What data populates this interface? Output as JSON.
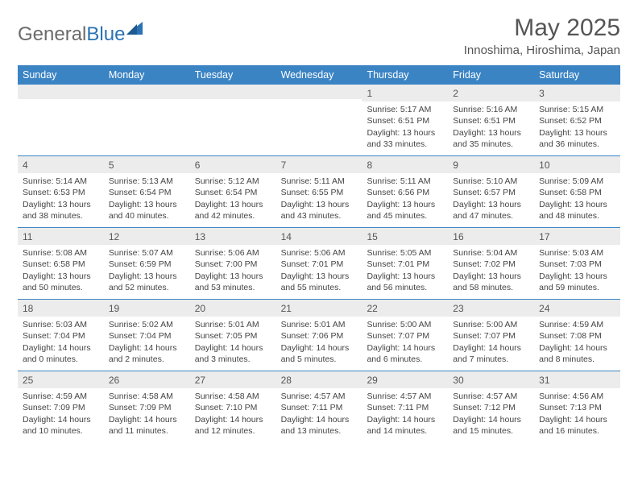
{
  "logo": {
    "text_gray": "General",
    "text_blue": "Blue"
  },
  "title": "May 2025",
  "location": "Innoshima, Hiroshima, Japan",
  "colors": {
    "header_bg": "#3b84c4",
    "header_text": "#ffffff",
    "daynum_bg": "#ececec",
    "week_border": "#3b84c4",
    "body_text": "#444444",
    "logo_gray": "#6b6b6b",
    "logo_blue": "#2a72b5"
  },
  "day_names": [
    "Sunday",
    "Monday",
    "Tuesday",
    "Wednesday",
    "Thursday",
    "Friday",
    "Saturday"
  ],
  "weeks": [
    [
      {
        "n": "",
        "sr": "",
        "ss": "",
        "dl": ""
      },
      {
        "n": "",
        "sr": "",
        "ss": "",
        "dl": ""
      },
      {
        "n": "",
        "sr": "",
        "ss": "",
        "dl": ""
      },
      {
        "n": "",
        "sr": "",
        "ss": "",
        "dl": ""
      },
      {
        "n": "1",
        "sr": "Sunrise: 5:17 AM",
        "ss": "Sunset: 6:51 PM",
        "dl": "Daylight: 13 hours and 33 minutes."
      },
      {
        "n": "2",
        "sr": "Sunrise: 5:16 AM",
        "ss": "Sunset: 6:51 PM",
        "dl": "Daylight: 13 hours and 35 minutes."
      },
      {
        "n": "3",
        "sr": "Sunrise: 5:15 AM",
        "ss": "Sunset: 6:52 PM",
        "dl": "Daylight: 13 hours and 36 minutes."
      }
    ],
    [
      {
        "n": "4",
        "sr": "Sunrise: 5:14 AM",
        "ss": "Sunset: 6:53 PM",
        "dl": "Daylight: 13 hours and 38 minutes."
      },
      {
        "n": "5",
        "sr": "Sunrise: 5:13 AM",
        "ss": "Sunset: 6:54 PM",
        "dl": "Daylight: 13 hours and 40 minutes."
      },
      {
        "n": "6",
        "sr": "Sunrise: 5:12 AM",
        "ss": "Sunset: 6:54 PM",
        "dl": "Daylight: 13 hours and 42 minutes."
      },
      {
        "n": "7",
        "sr": "Sunrise: 5:11 AM",
        "ss": "Sunset: 6:55 PM",
        "dl": "Daylight: 13 hours and 43 minutes."
      },
      {
        "n": "8",
        "sr": "Sunrise: 5:11 AM",
        "ss": "Sunset: 6:56 PM",
        "dl": "Daylight: 13 hours and 45 minutes."
      },
      {
        "n": "9",
        "sr": "Sunrise: 5:10 AM",
        "ss": "Sunset: 6:57 PM",
        "dl": "Daylight: 13 hours and 47 minutes."
      },
      {
        "n": "10",
        "sr": "Sunrise: 5:09 AM",
        "ss": "Sunset: 6:58 PM",
        "dl": "Daylight: 13 hours and 48 minutes."
      }
    ],
    [
      {
        "n": "11",
        "sr": "Sunrise: 5:08 AM",
        "ss": "Sunset: 6:58 PM",
        "dl": "Daylight: 13 hours and 50 minutes."
      },
      {
        "n": "12",
        "sr": "Sunrise: 5:07 AM",
        "ss": "Sunset: 6:59 PM",
        "dl": "Daylight: 13 hours and 52 minutes."
      },
      {
        "n": "13",
        "sr": "Sunrise: 5:06 AM",
        "ss": "Sunset: 7:00 PM",
        "dl": "Daylight: 13 hours and 53 minutes."
      },
      {
        "n": "14",
        "sr": "Sunrise: 5:06 AM",
        "ss": "Sunset: 7:01 PM",
        "dl": "Daylight: 13 hours and 55 minutes."
      },
      {
        "n": "15",
        "sr": "Sunrise: 5:05 AM",
        "ss": "Sunset: 7:01 PM",
        "dl": "Daylight: 13 hours and 56 minutes."
      },
      {
        "n": "16",
        "sr": "Sunrise: 5:04 AM",
        "ss": "Sunset: 7:02 PM",
        "dl": "Daylight: 13 hours and 58 minutes."
      },
      {
        "n": "17",
        "sr": "Sunrise: 5:03 AM",
        "ss": "Sunset: 7:03 PM",
        "dl": "Daylight: 13 hours and 59 minutes."
      }
    ],
    [
      {
        "n": "18",
        "sr": "Sunrise: 5:03 AM",
        "ss": "Sunset: 7:04 PM",
        "dl": "Daylight: 14 hours and 0 minutes."
      },
      {
        "n": "19",
        "sr": "Sunrise: 5:02 AM",
        "ss": "Sunset: 7:04 PM",
        "dl": "Daylight: 14 hours and 2 minutes."
      },
      {
        "n": "20",
        "sr": "Sunrise: 5:01 AM",
        "ss": "Sunset: 7:05 PM",
        "dl": "Daylight: 14 hours and 3 minutes."
      },
      {
        "n": "21",
        "sr": "Sunrise: 5:01 AM",
        "ss": "Sunset: 7:06 PM",
        "dl": "Daylight: 14 hours and 5 minutes."
      },
      {
        "n": "22",
        "sr": "Sunrise: 5:00 AM",
        "ss": "Sunset: 7:07 PM",
        "dl": "Daylight: 14 hours and 6 minutes."
      },
      {
        "n": "23",
        "sr": "Sunrise: 5:00 AM",
        "ss": "Sunset: 7:07 PM",
        "dl": "Daylight: 14 hours and 7 minutes."
      },
      {
        "n": "24",
        "sr": "Sunrise: 4:59 AM",
        "ss": "Sunset: 7:08 PM",
        "dl": "Daylight: 14 hours and 8 minutes."
      }
    ],
    [
      {
        "n": "25",
        "sr": "Sunrise: 4:59 AM",
        "ss": "Sunset: 7:09 PM",
        "dl": "Daylight: 14 hours and 10 minutes."
      },
      {
        "n": "26",
        "sr": "Sunrise: 4:58 AM",
        "ss": "Sunset: 7:09 PM",
        "dl": "Daylight: 14 hours and 11 minutes."
      },
      {
        "n": "27",
        "sr": "Sunrise: 4:58 AM",
        "ss": "Sunset: 7:10 PM",
        "dl": "Daylight: 14 hours and 12 minutes."
      },
      {
        "n": "28",
        "sr": "Sunrise: 4:57 AM",
        "ss": "Sunset: 7:11 PM",
        "dl": "Daylight: 14 hours and 13 minutes."
      },
      {
        "n": "29",
        "sr": "Sunrise: 4:57 AM",
        "ss": "Sunset: 7:11 PM",
        "dl": "Daylight: 14 hours and 14 minutes."
      },
      {
        "n": "30",
        "sr": "Sunrise: 4:57 AM",
        "ss": "Sunset: 7:12 PM",
        "dl": "Daylight: 14 hours and 15 minutes."
      },
      {
        "n": "31",
        "sr": "Sunrise: 4:56 AM",
        "ss": "Sunset: 7:13 PM",
        "dl": "Daylight: 14 hours and 16 minutes."
      }
    ]
  ]
}
